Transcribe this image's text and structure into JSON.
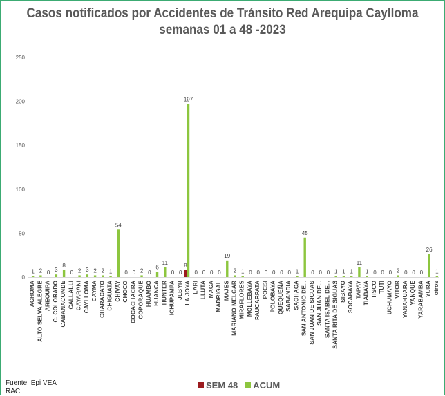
{
  "chart_data": {
    "type": "bar",
    "title": "Casos notificados  por Accidentes de Tránsito Red Arequipa Caylloma",
    "subtitle": "semanas 01 a 48  -2023",
    "ylim": [
      0,
      250
    ],
    "yticks": [
      0,
      50,
      100,
      150,
      200,
      250
    ],
    "grid": false,
    "legend_position": "bottom",
    "categories": [
      "ACHOMA",
      "ALTO SELVA ALEGRE",
      "AREQUIPA",
      "C. COLORADO",
      "CABANACONDE",
      "CALLALLI",
      "CAYARANI",
      "CAYLLOMA",
      "CAYMA",
      "CHARACATO",
      "CHIGUATA",
      "CHIVAY",
      "CHOCO",
      "COCACHACRA",
      "COPORAQUE",
      "HUAMBO",
      "HUANCA",
      "HUNTER",
      "ICHUPAMPA",
      "JLBYR",
      "LA JOYA",
      "LARI",
      "LLUTA",
      "MACA",
      "MADRIGAL",
      "MAJES",
      "MARIANO MELGAR",
      "MIRAFLORES",
      "MOLLEBAYA",
      "PAUCARPATA",
      "POCSI",
      "POLOBAYA",
      "QUEQUEÑA",
      "SABANDIA",
      "SACHACA",
      "SAN ANTONIO DE...",
      "SAN JUAN DE SIGUAS",
      "SAN JUAN DE...",
      "SANTA ISABEL DE...",
      "SANTA RITA DE SIGUAS",
      "SIBAYO",
      "SOCABAYA",
      "TAPAY",
      "TIABAYA",
      "TISCO",
      "TUTI",
      "UCHUMAYO",
      "VITOR",
      "YANAHUARA",
      "YANQUE",
      "YARABAMBA",
      "YURA",
      "otros"
    ],
    "series": [
      {
        "name": "SEM 48",
        "color": "#9b1b1f",
        "values": [
          0,
          0,
          0,
          0,
          0,
          0,
          0,
          0,
          0,
          0,
          0,
          0,
          0,
          0,
          0,
          0,
          0,
          0,
          0,
          0,
          8,
          0,
          0,
          0,
          0,
          0,
          0,
          0,
          0,
          0,
          0,
          0,
          0,
          0,
          0,
          0,
          0,
          0,
          0,
          0,
          0,
          0,
          0,
          0,
          0,
          0,
          0,
          0,
          0,
          0,
          0,
          0,
          0
        ]
      },
      {
        "name": "ACUM",
        "color": "#8dc63f",
        "values": [
          1,
          2,
          0,
          3,
          8,
          0,
          2,
          3,
          2,
          2,
          1,
          54,
          0,
          0,
          2,
          0,
          6,
          11,
          0,
          0,
          197,
          0,
          0,
          0,
          0,
          19,
          2,
          1,
          0,
          0,
          0,
          0,
          0,
          0,
          1,
          45,
          0,
          0,
          0,
          1,
          1,
          1,
          11,
          1,
          0,
          0,
          0,
          2,
          0,
          0,
          0,
          26,
          1
        ]
      }
    ],
    "data_labels": [
      "1",
      "2",
      "0",
      "3",
      "8",
      "0",
      "2",
      "3",
      "2",
      "2",
      "1",
      "54",
      "0",
      "0",
      "2",
      "0",
      "6",
      "11",
      "0",
      "0",
      "197",
      "0",
      "0",
      "0",
      "0",
      "19",
      "2",
      "1",
      "0",
      "0",
      "0",
      "0",
      "0",
      "0",
      "1",
      "45",
      "0",
      "0",
      "0",
      "1",
      "1",
      "1",
      "11",
      "1",
      "0",
      "0",
      "0",
      "2",
      "0",
      "0",
      "0",
      "26",
      "1"
    ],
    "sem48_labels": {
      "20": "8"
    }
  },
  "source": {
    "line1": "Fuente: Epi VEA",
    "line2": "RAC"
  },
  "legend": {
    "sem48": "SEM 48",
    "acum": "ACUM",
    "sem48_color": "#9b1b1f",
    "acum_color": "#8dc63f"
  }
}
